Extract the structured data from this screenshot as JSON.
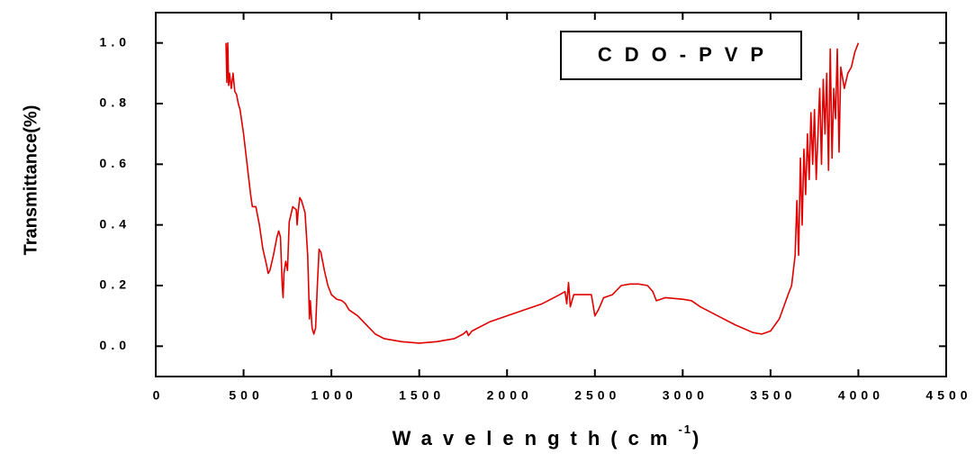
{
  "chart_data": {
    "type": "line",
    "ylabel": "Transmittance(%)",
    "xlabel": [
      "Wavelength(cm",
      "-1",
      ")"
    ],
    "xlim": [
      0,
      4500
    ],
    "xticks": [
      0,
      500,
      1000,
      1500,
      2000,
      2500,
      3000,
      3500,
      4000,
      4500
    ],
    "ylim": [
      -0.1,
      1.1
    ],
    "yticks": [
      {
        "value": 0,
        "label": "0.0"
      },
      {
        "value": 0.2,
        "label": "0.2"
      },
      {
        "value": 0.4,
        "label": "0.4"
      },
      {
        "value": 0.6,
        "label": "0.6"
      },
      {
        "value": 0.8,
        "label": "0.8"
      },
      {
        "value": 1,
        "label": "1.0"
      }
    ],
    "legend": "top-right",
    "series": [
      {
        "name": "CDO-PVP",
        "color": "#e00000",
        "x": [
          400,
          405,
          410,
          415,
          420,
          430,
          440,
          450,
          460,
          470,
          480,
          500,
          520,
          540,
          550,
          570,
          590,
          610,
          630,
          640,
          650,
          670,
          690,
          700,
          710,
          720,
          725,
          730,
          740,
          750,
          760,
          780,
          800,
          805,
          810,
          820,
          830,
          850,
          865,
          870,
          875,
          880,
          890,
          900,
          910,
          920,
          930,
          940,
          960,
          980,
          1000,
          1030,
          1060,
          1080,
          1100,
          1150,
          1200,
          1250,
          1300,
          1400,
          1500,
          1600,
          1700,
          1750,
          1770,
          1780,
          1800,
          1900,
          2000,
          2100,
          2200,
          2300,
          2330,
          2340,
          2350,
          2360,
          2380,
          2450,
          2480,
          2500,
          2520,
          2550,
          2600,
          2650,
          2700,
          2750,
          2800,
          2830,
          2850,
          2900,
          3000,
          3050,
          3100,
          3200,
          3300,
          3400,
          3450,
          3500,
          3550,
          3600,
          3620,
          3640,
          3650,
          3660,
          3670,
          3680,
          3690,
          3700,
          3710,
          3720,
          3730,
          3740,
          3750,
          3760,
          3770,
          3780,
          3790,
          3800,
          3810,
          3820,
          3830,
          3840,
          3850,
          3860,
          3870,
          3880,
          3890,
          3900,
          3920,
          3940,
          3960,
          3980,
          4000
        ],
        "values": [
          1.0,
          0.87,
          1.0,
          0.86,
          0.9,
          0.85,
          0.9,
          0.84,
          0.83,
          0.8,
          0.78,
          0.7,
          0.6,
          0.5,
          0.46,
          0.46,
          0.4,
          0.32,
          0.27,
          0.24,
          0.25,
          0.3,
          0.36,
          0.38,
          0.36,
          0.2,
          0.16,
          0.24,
          0.28,
          0.25,
          0.41,
          0.46,
          0.45,
          0.4,
          0.44,
          0.49,
          0.48,
          0.44,
          0.3,
          0.2,
          0.09,
          0.15,
          0.06,
          0.04,
          0.06,
          0.2,
          0.32,
          0.31,
          0.25,
          0.2,
          0.17,
          0.155,
          0.15,
          0.14,
          0.12,
          0.1,
          0.07,
          0.04,
          0.025,
          0.015,
          0.01,
          0.015,
          0.025,
          0.04,
          0.05,
          0.035,
          0.05,
          0.08,
          0.1,
          0.12,
          0.14,
          0.17,
          0.18,
          0.14,
          0.21,
          0.13,
          0.17,
          0.17,
          0.17,
          0.1,
          0.12,
          0.16,
          0.17,
          0.2,
          0.205,
          0.205,
          0.2,
          0.18,
          0.15,
          0.16,
          0.155,
          0.15,
          0.13,
          0.1,
          0.07,
          0.045,
          0.04,
          0.05,
          0.09,
          0.17,
          0.2,
          0.3,
          0.48,
          0.3,
          0.62,
          0.4,
          0.65,
          0.5,
          0.7,
          0.55,
          0.77,
          0.6,
          0.78,
          0.55,
          0.7,
          0.85,
          0.6,
          0.88,
          0.7,
          0.9,
          0.58,
          0.98,
          0.62,
          0.85,
          0.75,
          0.98,
          0.64,
          0.92,
          0.85,
          0.9,
          0.92,
          0.97,
          1.0
        ]
      }
    ]
  }
}
